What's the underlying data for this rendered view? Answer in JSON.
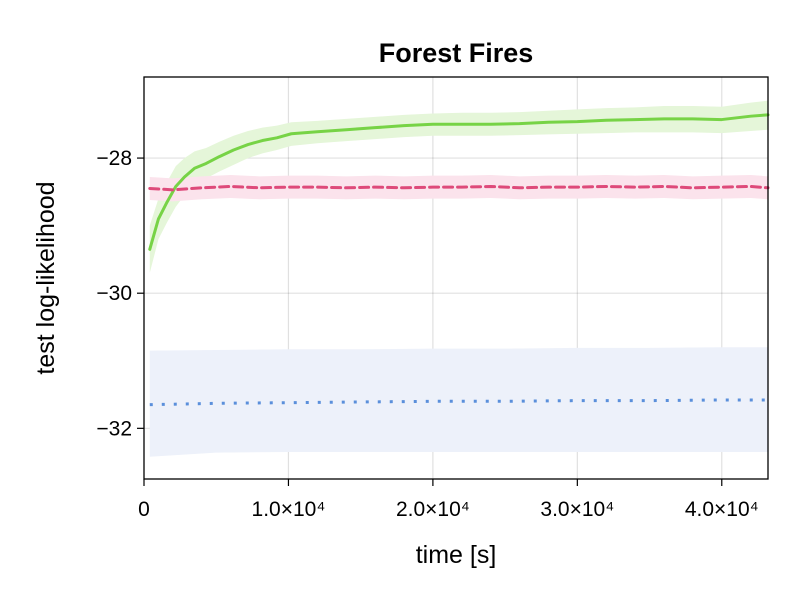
{
  "chart_data": {
    "type": "line",
    "title": "Forest Fires",
    "xlabel": "time [s]",
    "ylabel": "test log-likelihood",
    "xlim": [
      0,
      43200
    ],
    "ylim": [
      -32.75,
      -26.8
    ],
    "grid": true,
    "x_ticks": [
      {
        "value": 0,
        "label": "0"
      },
      {
        "value": 10000,
        "label": "1.0×10⁴"
      },
      {
        "value": 20000,
        "label": "2.0×10⁴"
      },
      {
        "value": 30000,
        "label": "3.0×10⁴"
      },
      {
        "value": 40000,
        "label": "4.0×10⁴"
      }
    ],
    "y_ticks": [
      {
        "value": -28,
        "label": "−28"
      },
      {
        "value": -30,
        "label": "−30"
      },
      {
        "value": -32,
        "label": "−32"
      }
    ],
    "series": [
      {
        "color": "#77d346",
        "band_color": "#e5f6d9",
        "style": "solid",
        "x": [
          400,
          1000,
          1600,
          2200,
          2800,
          3500,
          4300,
          5200,
          6200,
          7200,
          8200,
          9200,
          10200,
          12000,
          14000,
          16000,
          18000,
          20000,
          22000,
          24000,
          26000,
          28000,
          30000,
          32000,
          34000,
          36000,
          38000,
          40000,
          42000,
          43200
        ],
        "values": [
          -29.35,
          -28.9,
          -28.65,
          -28.42,
          -28.28,
          -28.15,
          -28.08,
          -27.98,
          -27.88,
          -27.8,
          -27.74,
          -27.7,
          -27.64,
          -27.61,
          -27.58,
          -27.55,
          -27.52,
          -27.5,
          -27.5,
          -27.5,
          -27.49,
          -27.47,
          -27.46,
          -27.44,
          -27.43,
          -27.42,
          -27.42,
          -27.43,
          -27.38,
          -27.36
        ],
        "lower": [
          -29.7,
          -29.2,
          -28.95,
          -28.72,
          -28.55,
          -28.4,
          -28.3,
          -28.2,
          -28.1,
          -28.0,
          -27.93,
          -27.88,
          -27.82,
          -27.78,
          -27.75,
          -27.72,
          -27.69,
          -27.67,
          -27.67,
          -27.67,
          -27.66,
          -27.65,
          -27.64,
          -27.63,
          -27.62,
          -27.62,
          -27.62,
          -27.63,
          -27.6,
          -27.58
        ],
        "upper": [
          -29.0,
          -28.6,
          -28.35,
          -28.12,
          -28.0,
          -27.9,
          -27.85,
          -27.76,
          -27.67,
          -27.6,
          -27.55,
          -27.52,
          -27.47,
          -27.45,
          -27.42,
          -27.39,
          -27.36,
          -27.34,
          -27.33,
          -27.33,
          -27.32,
          -27.3,
          -27.28,
          -27.26,
          -27.25,
          -27.23,
          -27.23,
          -27.24,
          -27.18,
          -27.15
        ]
      },
      {
        "color": "#de4a7a",
        "band_color": "#fbe3ec",
        "style": "dashed",
        "x": [
          400,
          2000,
          4000,
          6000,
          8000,
          10000,
          12000,
          14000,
          16000,
          18000,
          20000,
          22000,
          24000,
          26000,
          28000,
          30000,
          32000,
          34000,
          36000,
          38000,
          40000,
          42000,
          43200
        ],
        "values": [
          -28.45,
          -28.47,
          -28.44,
          -28.42,
          -28.44,
          -28.43,
          -28.43,
          -28.44,
          -28.43,
          -28.44,
          -28.43,
          -28.43,
          -28.42,
          -28.44,
          -28.43,
          -28.43,
          -28.42,
          -28.43,
          -28.42,
          -28.44,
          -28.43,
          -28.42,
          -28.44
        ],
        "lower": [
          -28.62,
          -28.64,
          -28.61,
          -28.59,
          -28.61,
          -28.6,
          -28.6,
          -28.61,
          -28.6,
          -28.61,
          -28.6,
          -28.6,
          -28.59,
          -28.61,
          -28.6,
          -28.6,
          -28.59,
          -28.6,
          -28.59,
          -28.61,
          -28.6,
          -28.59,
          -28.61
        ],
        "upper": [
          -28.28,
          -28.3,
          -28.27,
          -28.25,
          -28.27,
          -28.26,
          -28.26,
          -28.27,
          -28.26,
          -28.27,
          -28.26,
          -28.26,
          -28.25,
          -28.27,
          -28.26,
          -28.26,
          -28.25,
          -28.26,
          -28.25,
          -28.27,
          -28.26,
          -28.25,
          -28.27
        ]
      },
      {
        "color": "#5a8fdb",
        "band_color": "#edf1fa",
        "style": "dotted",
        "x": [
          400,
          5000,
          10000,
          15000,
          20000,
          25000,
          30000,
          35000,
          40000,
          43200
        ],
        "values": [
          -31.65,
          -31.63,
          -31.62,
          -31.61,
          -31.6,
          -31.6,
          -31.59,
          -31.59,
          -31.58,
          -31.58
        ],
        "lower": [
          -32.42,
          -32.36,
          -32.35,
          -32.35,
          -32.35,
          -32.35,
          -32.35,
          -32.35,
          -32.35,
          -32.35
        ],
        "upper": [
          -30.85,
          -30.84,
          -30.83,
          -30.83,
          -30.82,
          -30.82,
          -30.81,
          -30.81,
          -30.8,
          -30.8
        ]
      }
    ]
  }
}
